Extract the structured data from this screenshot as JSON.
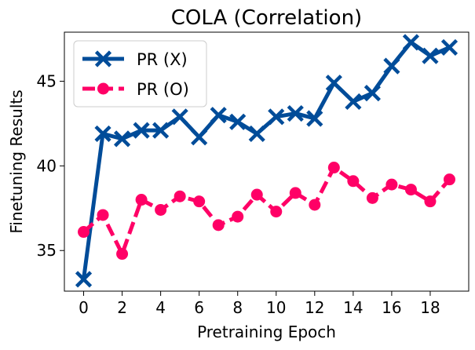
{
  "chart_data": {
    "type": "line",
    "title": "COLA (Correlation)",
    "xlabel": "Pretraining Epoch",
    "ylabel": "Finetuning Results",
    "x": [
      0,
      1,
      2,
      3,
      4,
      5,
      6,
      7,
      8,
      9,
      10,
      11,
      12,
      13,
      14,
      15,
      16,
      17,
      18,
      19
    ],
    "xlim": [
      -1,
      20
    ],
    "ylim": [
      32.6,
      47.9
    ],
    "xticks": [
      0,
      2,
      4,
      6,
      8,
      10,
      12,
      14,
      16,
      18
    ],
    "yticks": [
      35,
      40,
      45
    ],
    "legend_position": "top-left",
    "series": [
      {
        "name": "PR (X)",
        "color": "#004c99",
        "marker": "x",
        "linestyle": "solid",
        "values": [
          33.3,
          41.9,
          41.6,
          42.1,
          42.1,
          42.9,
          41.7,
          43.0,
          42.6,
          41.9,
          42.9,
          43.1,
          42.8,
          44.9,
          43.8,
          44.3,
          45.9,
          47.3,
          46.5,
          47.0
        ]
      },
      {
        "name": "PR (O)",
        "color": "#ff0066",
        "marker": "o",
        "linestyle": "dashed",
        "values": [
          36.1,
          37.1,
          34.8,
          38.0,
          37.4,
          38.2,
          37.9,
          36.5,
          37.0,
          38.3,
          37.3,
          38.4,
          37.7,
          39.9,
          39.1,
          38.1,
          38.9,
          38.6,
          37.9,
          39.2
        ]
      }
    ]
  }
}
